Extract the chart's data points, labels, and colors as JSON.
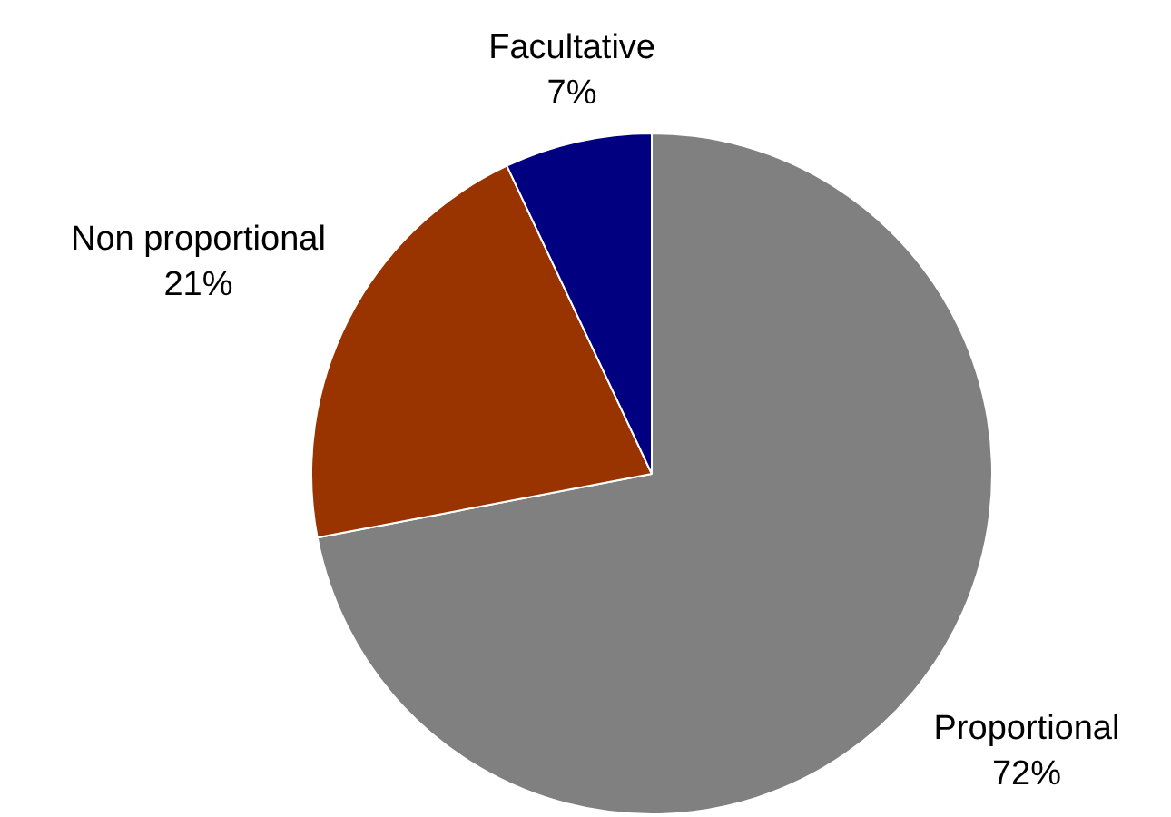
{
  "chart_data": {
    "type": "pie",
    "categories": [
      "Proportional",
      "Non proportional",
      "Facultative"
    ],
    "values": [
      72,
      21,
      7
    ],
    "colors": [
      "#808080",
      "#993300",
      "#000080"
    ],
    "value_labels": [
      "72%",
      "21%",
      "7%"
    ],
    "legend": false
  }
}
